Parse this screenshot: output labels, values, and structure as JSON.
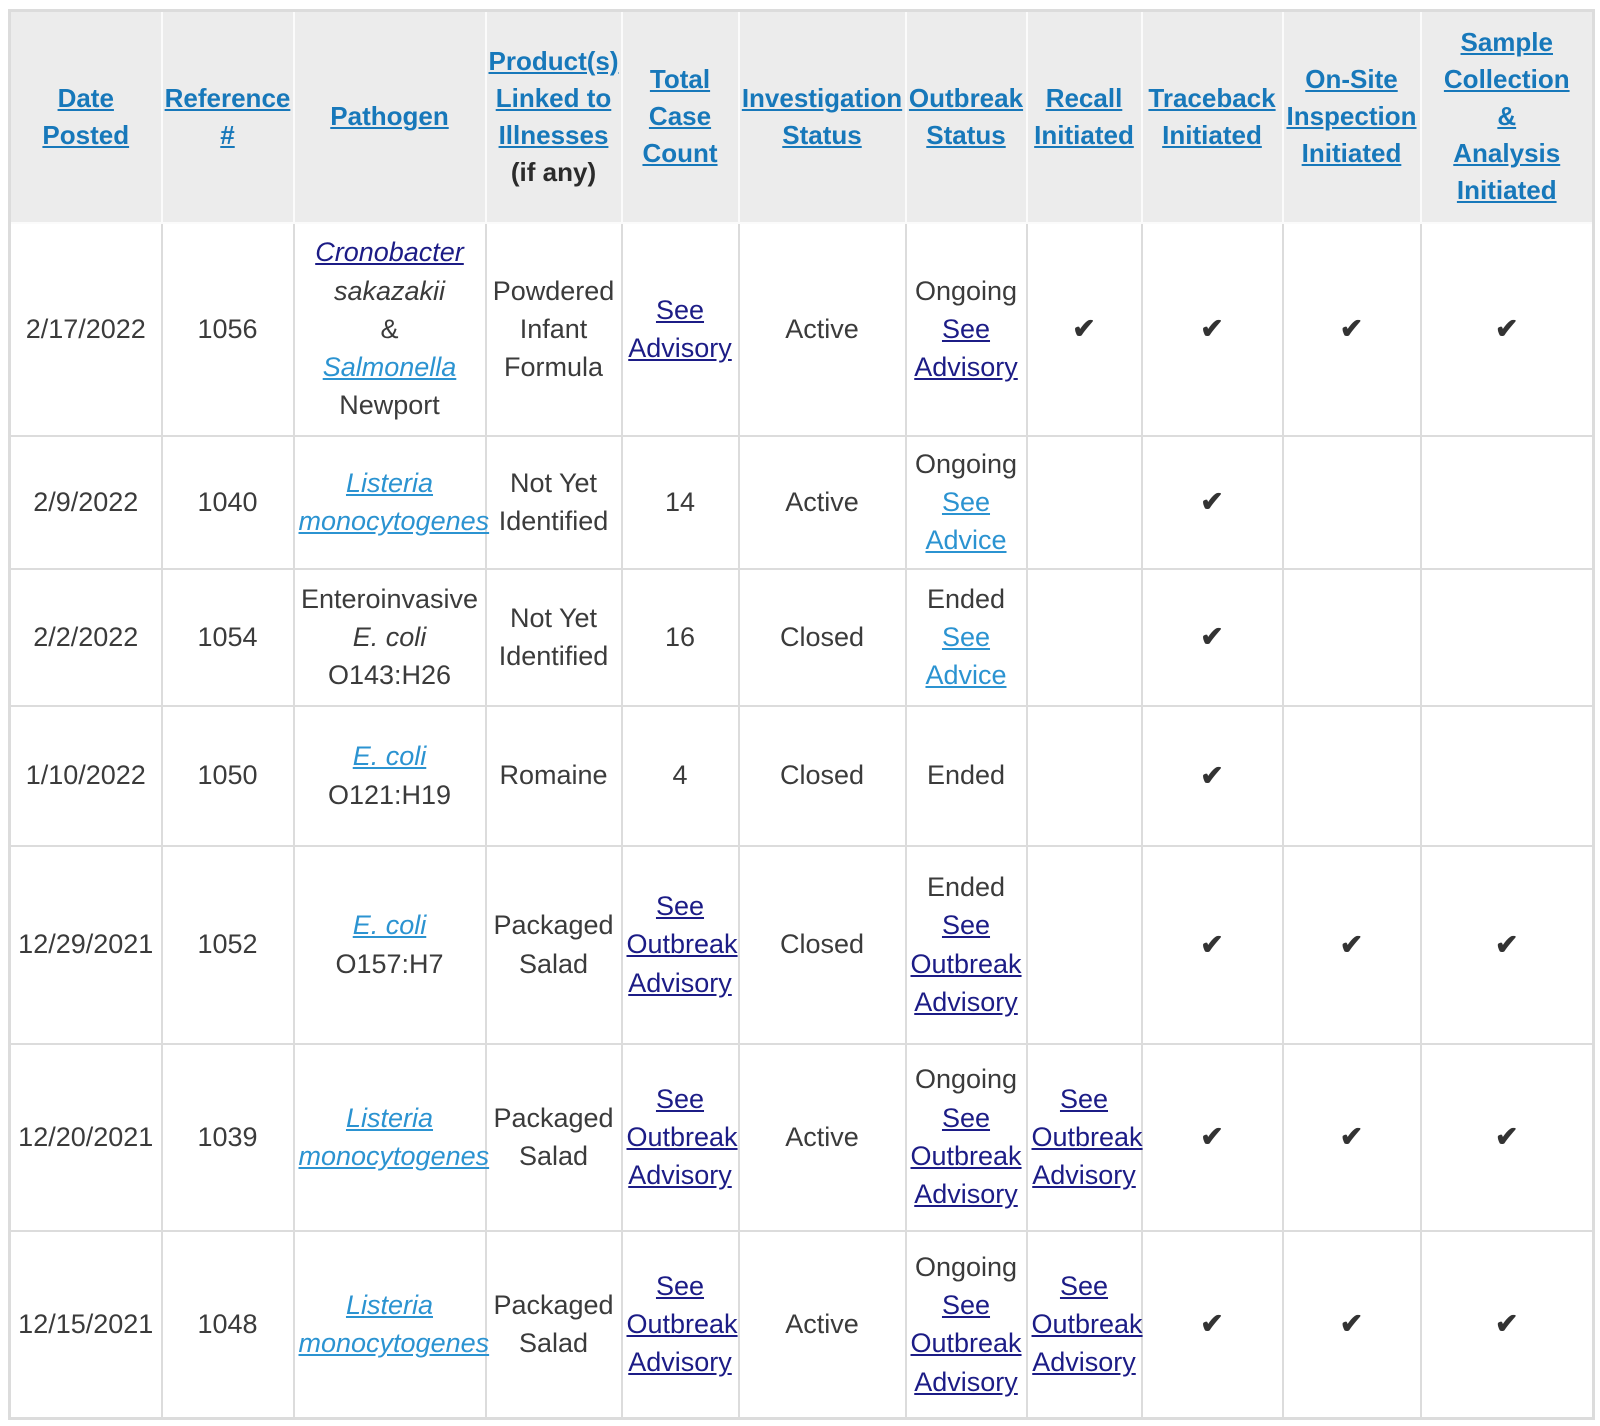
{
  "colors": {
    "header_background": "#ececec",
    "header_link": "#1778ba",
    "body_link_unvisited": "#2b93d1",
    "body_link_visited": "#1c1c86",
    "grid_border": "#dcdcdc",
    "body_text": "#3b3b3b",
    "check_mark": "#333333"
  },
  "table": {
    "check_glyph": "✔",
    "columns": [
      {
        "label": "Date\nPosted"
      },
      {
        "label": "Reference\n#"
      },
      {
        "label": "Pathogen"
      },
      {
        "label": "Product(s)\nLinked to\nIllnesses",
        "sublabel": "(if any)"
      },
      {
        "label": "Total\nCase\nCount"
      },
      {
        "label": "Investigation\nStatus"
      },
      {
        "label": "Outbreak\nStatus"
      },
      {
        "label": "Recall\nInitiated"
      },
      {
        "label": "Traceback\nInitiated"
      },
      {
        "label": "On-Site\nInspection\nInitiated"
      },
      {
        "label": "Sample\nCollection\n&\nAnalysis\nInitiated"
      }
    ],
    "rows": [
      {
        "cells": [
          [
            {
              "t": "2/17/2022"
            }
          ],
          [
            {
              "t": "1056"
            }
          ],
          [
            {
              "k": "vlink",
              "t": "Cronobacter",
              "i": 1
            },
            {
              "br": 1
            },
            {
              "t": "sakazakii",
              "i": 1
            },
            {
              "br": 1
            },
            {
              "t": "&"
            },
            {
              "br": 1
            },
            {
              "k": "link",
              "t": "Salmonella",
              "i": 1
            },
            {
              "br": 1
            },
            {
              "t": "Newport"
            }
          ],
          [
            {
              "t": "Powdered Infant Formula"
            }
          ],
          [
            {
              "k": "vlink",
              "t": "See Advisory"
            }
          ],
          [
            {
              "t": "Active"
            }
          ],
          [
            {
              "t": "Ongoing"
            },
            {
              "br": 1
            },
            {
              "k": "vlink",
              "t": "See Advisory"
            }
          ],
          [
            {
              "check": 1
            }
          ],
          [
            {
              "check": 1
            }
          ],
          [
            {
              "check": 1
            }
          ],
          [
            {
              "check": 1
            }
          ]
        ]
      },
      {
        "cells": [
          [
            {
              "t": "2/9/2022"
            }
          ],
          [
            {
              "t": "1040"
            }
          ],
          [
            {
              "k": "link",
              "t": "Listeria monocytogenes",
              "i": 1
            }
          ],
          [
            {
              "t": "Not Yet Identified"
            }
          ],
          [
            {
              "t": "14"
            }
          ],
          [
            {
              "t": "Active"
            }
          ],
          [
            {
              "t": "Ongoing"
            },
            {
              "br": 1
            },
            {
              "k": "link",
              "t": "See Advice"
            }
          ],
          [],
          [
            {
              "check": 1
            }
          ],
          [],
          []
        ]
      },
      {
        "cells": [
          [
            {
              "t": "2/2/2022"
            }
          ],
          [
            {
              "t": "1054"
            }
          ],
          [
            {
              "t": "Enteroinvasive"
            },
            {
              "br": 1
            },
            {
              "t": "E. coli",
              "i": 1
            },
            {
              "br": 1
            },
            {
              "t": "O143:H26"
            }
          ],
          [
            {
              "t": "Not Yet Identified"
            }
          ],
          [
            {
              "t": "16"
            }
          ],
          [
            {
              "t": "Closed"
            }
          ],
          [
            {
              "t": "Ended"
            },
            {
              "br": 1
            },
            {
              "k": "link",
              "t": "See Advice"
            }
          ],
          [],
          [
            {
              "check": 1
            }
          ],
          [],
          []
        ]
      },
      {
        "cells": [
          [
            {
              "t": "1/10/2022"
            }
          ],
          [
            {
              "t": "1050"
            }
          ],
          [
            {
              "k": "link",
              "t": "E. coli",
              "i": 1
            },
            {
              "br": 1
            },
            {
              "t": "O121:H19"
            }
          ],
          [
            {
              "t": "Romaine"
            }
          ],
          [
            {
              "t": "4"
            }
          ],
          [
            {
              "t": "Closed"
            }
          ],
          [
            {
              "t": "Ended"
            }
          ],
          [],
          [
            {
              "check": 1
            }
          ],
          [],
          []
        ]
      },
      {
        "cells": [
          [
            {
              "t": "12/29/2021"
            }
          ],
          [
            {
              "t": "1052"
            }
          ],
          [
            {
              "k": "link",
              "t": "E. coli",
              "i": 1
            },
            {
              "br": 1
            },
            {
              "t": "O157:H7"
            }
          ],
          [
            {
              "t": "Packaged Salad"
            }
          ],
          [
            {
              "k": "vlink",
              "t": "See Outbreak Advisory"
            }
          ],
          [
            {
              "t": "Closed"
            }
          ],
          [
            {
              "t": "Ended"
            },
            {
              "br": 1
            },
            {
              "k": "vlink",
              "t": "See Outbreak Advisory"
            }
          ],
          [],
          [
            {
              "check": 1
            }
          ],
          [
            {
              "check": 1
            }
          ],
          [
            {
              "check": 1
            }
          ]
        ]
      },
      {
        "cells": [
          [
            {
              "t": "12/20/2021"
            }
          ],
          [
            {
              "t": "1039"
            }
          ],
          [
            {
              "k": "link",
              "t": "Listeria monocytogenes",
              "i": 1
            }
          ],
          [
            {
              "t": "Packaged Salad"
            }
          ],
          [
            {
              "k": "vlink",
              "t": "See Outbreak Advisory"
            }
          ],
          [
            {
              "t": "Active"
            }
          ],
          [
            {
              "t": "Ongoing"
            },
            {
              "br": 1
            },
            {
              "k": "vlink",
              "t": "See Outbreak Advisory"
            }
          ],
          [
            {
              "k": "vlink",
              "t": "See Outbreak Advisory"
            }
          ],
          [
            {
              "check": 1
            }
          ],
          [
            {
              "check": 1
            }
          ],
          [
            {
              "check": 1
            }
          ]
        ]
      },
      {
        "cells": [
          [
            {
              "t": "12/15/2021"
            }
          ],
          [
            {
              "t": "1048"
            }
          ],
          [
            {
              "k": "link",
              "t": "Listeria monocytogenes",
              "i": 1
            }
          ],
          [
            {
              "t": "Packaged Salad"
            }
          ],
          [
            {
              "k": "vlink",
              "t": "See Outbreak Advisory"
            }
          ],
          [
            {
              "t": "Active"
            }
          ],
          [
            {
              "t": "Ongoing"
            },
            {
              "br": 1
            },
            {
              "k": "vlink",
              "t": "See Outbreak Advisory"
            }
          ],
          [
            {
              "k": "vlink",
              "t": "See Outbreak Advisory"
            }
          ],
          [
            {
              "check": 1
            }
          ],
          [
            {
              "check": 1
            }
          ],
          [
            {
              "check": 1
            }
          ]
        ]
      }
    ]
  }
}
